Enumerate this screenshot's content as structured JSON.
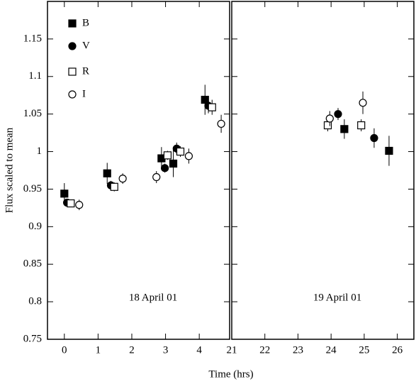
{
  "chart_data": {
    "type": "scatter",
    "ylabel": "Flux scaled to mean",
    "xlabel": "Time (hrs)",
    "ylim": [
      0.75,
      1.2
    ],
    "yticks": [
      0.75,
      0.8,
      0.85,
      0.9,
      0.95,
      1,
      1.05,
      1.1,
      1.15
    ],
    "panels": [
      {
        "xlim": [
          -0.5,
          4.9
        ],
        "xticks": [
          0,
          1,
          2,
          3,
          4
        ],
        "annotation": "18 April 01"
      },
      {
        "xlim": [
          21,
          26.5
        ],
        "xticks": [
          21,
          22,
          23,
          24,
          25,
          26
        ],
        "annotation": "19 April 01"
      }
    ],
    "series": [
      {
        "name": "B",
        "marker": "square",
        "filled": true,
        "color": "#000000",
        "x": [
          0,
          1.27,
          2.88,
          3.23,
          4.17,
          24.4,
          25.75
        ],
        "values": [
          0.944,
          0.971,
          0.991,
          0.984,
          1.069,
          1.03,
          1.001
        ],
        "errors": [
          0.014,
          0.014,
          0.015,
          0.018,
          0.02,
          0.013,
          0.02
        ]
      },
      {
        "name": "V",
        "marker": "circle",
        "filled": true,
        "color": "#000000",
        "x": [
          0.08,
          1.38,
          2.98,
          3.33,
          4.27,
          24.21,
          25.3
        ],
        "values": [
          0.932,
          0.955,
          0.978,
          1.004,
          1.061,
          1.05,
          1.018
        ],
        "errors": [
          0.005,
          0.006,
          0.006,
          0.008,
          0.01,
          0.008,
          0.013
        ]
      },
      {
        "name": "R",
        "marker": "square",
        "filled": false,
        "color": "#000000",
        "x": [
          0.19,
          1.48,
          3.06,
          3.44,
          4.38,
          23.9,
          24.91
        ],
        "values": [
          0.931,
          0.953,
          0.995,
          1.0,
          1.059,
          1.035,
          1.035
        ],
        "errors": [
          0.005,
          0.006,
          0.006,
          0.007,
          0.01,
          0.008,
          0.008
        ]
      },
      {
        "name": "I",
        "marker": "circle",
        "filled": false,
        "color": "#000000",
        "x": [
          0.44,
          1.73,
          2.73,
          3.69,
          4.65,
          23.96,
          24.96
        ],
        "values": [
          0.929,
          0.964,
          0.966,
          0.994,
          1.037,
          1.044,
          1.065
        ],
        "errors": [
          0.007,
          0.007,
          0.008,
          0.01,
          0.012,
          0.01,
          0.015
        ]
      }
    ]
  }
}
